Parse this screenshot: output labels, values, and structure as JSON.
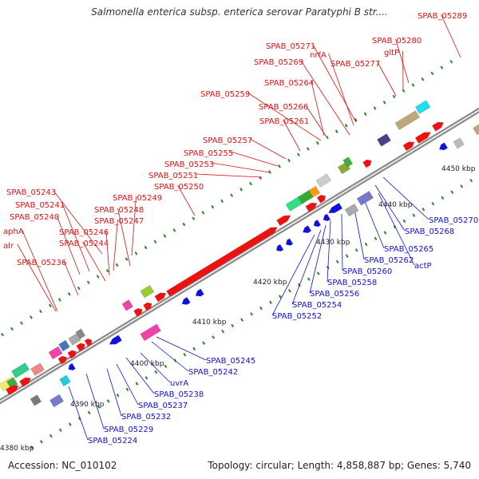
{
  "title": "Salmonella enterica subsp. enterica serovar Paratyphi B str....",
  "accession": "Accession: NC_010102",
  "topology": "Topology: circular; Length: 4,858,887 bp; Genes: 5,740",
  "colors": {
    "forward_label": "#dd1111",
    "reverse_label": "#1111cc",
    "backbone": "#9a9a9a",
    "forward_gene": "#ee1111",
    "reverse_gene": "#1111dd",
    "tick": "#228822"
  },
  "kbp_ticks": [
    "4380 kbp",
    "4390 kbp",
    "4400 kbp",
    "4410 kbp",
    "4420 kbp",
    "4430 kbp",
    "4440 kbp",
    "4450 kbp"
  ],
  "forward_labels": [
    "SPAB_05289",
    "SPAB_05280",
    "gltP",
    "SPAB_05271",
    "nrfA",
    "SPAB_05277",
    "SPAB_05269",
    "SPAB_05264",
    "SPAB_05259",
    "SPAB_05266",
    "SPAB_05261",
    "SPAB_05257",
    "SPAB_05255",
    "SPAB_05253",
    "SPAB_05251",
    "SPAB_05250",
    "SPAB_05249",
    "SPAB_05248",
    "SPAB_05247",
    "SPAB_05246",
    "SPAB_05244",
    "SPAB_05243",
    "SPAB_05241",
    "SPAB_05240",
    "aphA",
    "alr",
    "SPAB_05236"
  ],
  "reverse_labels": [
    "SPAB_05270",
    "SPAB_05268",
    "SPAB_05265",
    "actP",
    "SPAB_05262",
    "SPAB_05260",
    "SPAB_05258",
    "SPAB_05256",
    "SPAB_05254",
    "SPAB_05252",
    "SPAB_05245",
    "SPAB_05242",
    "uvrA",
    "SPAB_05238",
    "SPAB_05237",
    "SPAB_05232",
    "SPAB_05229",
    "SPAB_05224"
  ]
}
